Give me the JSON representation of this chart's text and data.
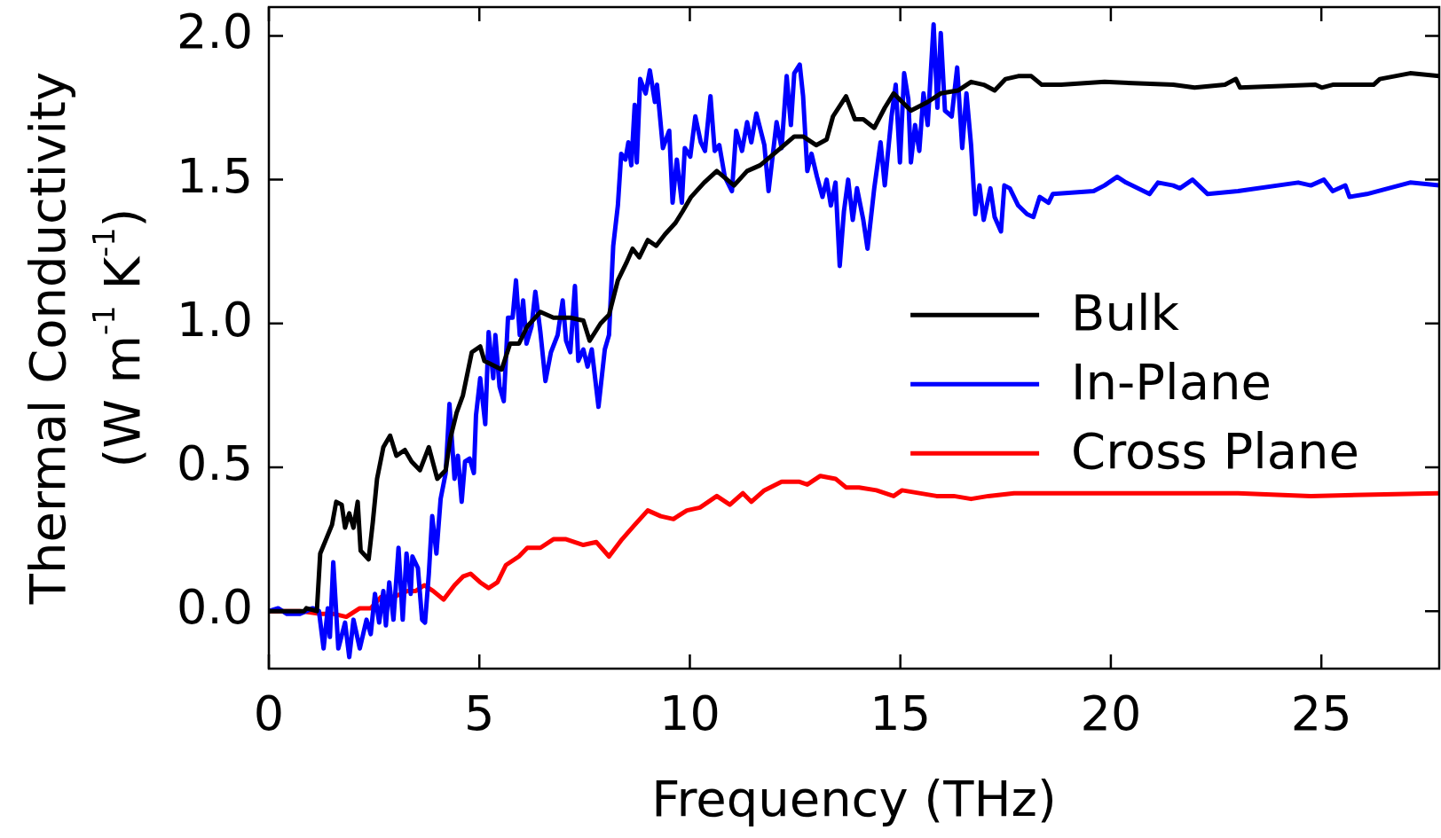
{
  "chart_data": {
    "type": "line",
    "xlabel": "Frequency (THz)",
    "ylabel": "Thermal Conductivity (W m$^{-1}$ K$^{-1}$)",
    "xlim": [
      0,
      27.8
    ],
    "ylim": [
      -0.2,
      2.1
    ],
    "xticks": [
      0,
      5,
      10,
      15,
      20,
      25
    ],
    "yticks": [
      {
        "value": 0,
        "label": "0.0"
      },
      {
        "value": 0.5,
        "label": "0.5"
      },
      {
        "value": 1,
        "label": "1.0"
      },
      {
        "value": 1.5,
        "label": "1.5"
      },
      {
        "value": 2,
        "label": "2.0"
      }
    ],
    "grid": false,
    "legend": "right",
    "marker": "none",
    "line_style": "solid",
    "series": [
      {
        "name": "Bulk",
        "color": "#000000",
        "x": [
          0,
          0.84,
          0.89,
          1.14,
          1.22,
          1.5,
          1.6,
          1.73,
          1.81,
          1.91,
          2.01,
          2.11,
          2.18,
          2.37,
          2.47,
          2.57,
          2.72,
          2.88,
          3.03,
          3.23,
          3.39,
          3.59,
          3.8,
          4.0,
          4.2,
          4.31,
          4.46,
          4.61,
          4.82,
          5.02,
          5.12,
          5.53,
          5.73,
          5.94,
          6.14,
          6.45,
          6.76,
          7.16,
          7.47,
          7.62,
          7.88,
          8.08,
          8.29,
          8.49,
          8.64,
          8.8,
          9.0,
          9.2,
          9.41,
          9.66,
          9.83,
          10.03,
          10.34,
          10.64,
          11.05,
          11.36,
          11.67,
          12.08,
          12.48,
          12.69,
          13.0,
          13.25,
          13.4,
          13.71,
          13.92,
          14.12,
          14.38,
          14.63,
          14.84,
          15.25,
          15.65,
          15.96,
          16.37,
          16.68,
          16.98,
          17.24,
          17.5,
          17.8,
          18.11,
          18.36,
          18.82,
          19.85,
          21.48,
          21.99,
          22.71,
          22.97,
          23.07,
          24.86,
          25.01,
          25.27,
          26.24,
          26.39,
          27.11,
          27.8
        ],
        "values": [
          0,
          0,
          0.01,
          0,
          0.2,
          0.3,
          0.38,
          0.37,
          0.29,
          0.34,
          0.29,
          0.38,
          0.21,
          0.18,
          0.31,
          0.46,
          0.57,
          0.61,
          0.54,
          0.56,
          0.52,
          0.49,
          0.57,
          0.46,
          0.49,
          0.6,
          0.69,
          0.75,
          0.9,
          0.92,
          0.87,
          0.84,
          0.93,
          0.93,
          0.99,
          1.04,
          1.02,
          1.02,
          1.01,
          0.94,
          1.0,
          1.03,
          1.15,
          1.21,
          1.26,
          1.23,
          1.29,
          1.27,
          1.31,
          1.35,
          1.39,
          1.44,
          1.49,
          1.53,
          1.48,
          1.53,
          1.55,
          1.6,
          1.65,
          1.65,
          1.62,
          1.64,
          1.72,
          1.79,
          1.71,
          1.71,
          1.68,
          1.75,
          1.8,
          1.74,
          1.77,
          1.8,
          1.81,
          1.84,
          1.83,
          1.81,
          1.85,
          1.86,
          1.86,
          1.83,
          1.83,
          1.84,
          1.83,
          1.82,
          1.83,
          1.85,
          1.82,
          1.83,
          1.82,
          1.83,
          1.83,
          1.85,
          1.87,
          1.86
        ]
      },
      {
        "name": "In-Plane",
        "color": "#0000ff",
        "x": [
          0,
          0.22,
          0.43,
          0.73,
          1.04,
          1.19,
          1.3,
          1.4,
          1.45,
          1.53,
          1.65,
          1.81,
          1.91,
          2.01,
          2.16,
          2.32,
          2.42,
          2.52,
          2.62,
          2.72,
          2.78,
          2.86,
          2.96,
          3.08,
          3.18,
          3.27,
          3.37,
          3.41,
          3.54,
          3.64,
          3.71,
          3.8,
          3.88,
          3.98,
          4.08,
          4.2,
          4.29,
          4.41,
          4.49,
          4.58,
          4.66,
          4.77,
          4.87,
          4.92,
          5.02,
          5.14,
          5.22,
          5.33,
          5.38,
          5.48,
          5.58,
          5.68,
          5.79,
          5.87,
          5.96,
          6.04,
          6.12,
          6.24,
          6.33,
          6.45,
          6.57,
          6.7,
          6.86,
          6.98,
          7.06,
          7.16,
          7.27,
          7.35,
          7.47,
          7.57,
          7.67,
          7.83,
          7.98,
          8.08,
          8.18,
          8.29,
          8.37,
          8.47,
          8.54,
          8.61,
          8.69,
          8.74,
          8.82,
          8.95,
          9.05,
          9.17,
          9.22,
          9.36,
          9.51,
          9.59,
          9.69,
          9.81,
          9.88,
          10.01,
          10.13,
          10.26,
          10.36,
          10.49,
          10.59,
          10.7,
          10.83,
          11.0,
          11.1,
          11.24,
          11.36,
          11.46,
          11.58,
          11.77,
          11.87,
          12.06,
          12.18,
          12.3,
          12.4,
          12.48,
          12.61,
          12.69,
          12.79,
          12.89,
          13.02,
          13.15,
          13.25,
          13.35,
          13.46,
          13.56,
          13.66,
          13.76,
          13.87,
          13.97,
          14.12,
          14.22,
          14.38,
          14.53,
          14.63,
          14.79,
          14.89,
          14.99,
          15.09,
          15.19,
          15.25,
          15.35,
          15.45,
          15.55,
          15.65,
          15.79,
          15.88,
          15.96,
          16.06,
          16.22,
          16.35,
          16.47,
          16.57,
          16.68,
          16.78,
          16.88,
          16.98,
          17.14,
          17.24,
          17.39,
          17.47,
          17.6,
          17.8,
          18.01,
          18.16,
          18.31,
          18.52,
          18.62,
          19.59,
          19.85,
          20.15,
          20.36,
          20.92,
          21.12,
          21.48,
          21.64,
          21.94,
          22.3,
          23.02,
          24.45,
          24.75,
          25.06,
          25.27,
          25.57,
          25.67,
          26.08,
          27.11,
          27.8
        ],
        "values": [
          0,
          0.01,
          -0.01,
          -0.01,
          0.01,
          0,
          -0.13,
          0.01,
          -0.09,
          0.17,
          -0.13,
          -0.04,
          -0.16,
          -0.03,
          -0.13,
          -0.03,
          -0.08,
          0.06,
          -0.04,
          0.07,
          -0.05,
          0.1,
          -0.03,
          0.22,
          -0.03,
          0.2,
          0.06,
          0.19,
          0.15,
          -0.03,
          -0.04,
          0.13,
          0.33,
          0.2,
          0.39,
          0.48,
          0.72,
          0.46,
          0.54,
          0.38,
          0.52,
          0.53,
          0.48,
          0.68,
          0.81,
          0.65,
          0.97,
          0.81,
          0.96,
          0.78,
          0.73,
          1.02,
          1.02,
          1.15,
          0.96,
          1.08,
          0.93,
          0.99,
          1.11,
          0.97,
          0.8,
          0.9,
          0.96,
          1.08,
          0.94,
          0.9,
          1.13,
          0.87,
          0.91,
          0.85,
          0.91,
          0.71,
          0.91,
          0.96,
          1.27,
          1.41,
          1.59,
          1.57,
          1.63,
          1.55,
          1.76,
          1.56,
          1.85,
          1.8,
          1.88,
          1.77,
          1.83,
          1.61,
          1.67,
          1.42,
          1.57,
          1.42,
          1.61,
          1.58,
          1.72,
          1.63,
          1.6,
          1.79,
          1.6,
          1.62,
          1.51,
          1.46,
          1.67,
          1.6,
          1.7,
          1.63,
          1.73,
          1.62,
          1.46,
          1.7,
          1.61,
          1.86,
          1.69,
          1.87,
          1.9,
          1.79,
          1.53,
          1.59,
          1.51,
          1.44,
          1.5,
          1.41,
          1.49,
          1.2,
          1.39,
          1.5,
          1.36,
          1.47,
          1.36,
          1.26,
          1.47,
          1.63,
          1.48,
          1.72,
          1.83,
          1.56,
          1.87,
          1.78,
          1.56,
          1.69,
          1.6,
          1.8,
          1.69,
          2.04,
          1.75,
          2.01,
          1.74,
          1.72,
          1.89,
          1.61,
          1.8,
          1.62,
          1.38,
          1.48,
          1.36,
          1.47,
          1.37,
          1.32,
          1.48,
          1.47,
          1.41,
          1.38,
          1.37,
          1.44,
          1.42,
          1.45,
          1.46,
          1.48,
          1.51,
          1.49,
          1.45,
          1.49,
          1.48,
          1.47,
          1.5,
          1.45,
          1.46,
          1.49,
          1.48,
          1.5,
          1.46,
          1.48,
          1.44,
          1.45,
          1.49,
          1.48
        ]
      },
      {
        "name": "Cross Plane",
        "color": "#ff0000",
        "x": [
          0,
          0.73,
          1.24,
          1.55,
          1.84,
          2.16,
          2.42,
          2.67,
          2.98,
          3.29,
          3.49,
          3.69,
          3.9,
          4.15,
          4.41,
          4.61,
          4.79,
          5.02,
          5.22,
          5.43,
          5.63,
          5.94,
          6.14,
          6.45,
          6.76,
          7.06,
          7.47,
          7.78,
          8.08,
          8.39,
          8.69,
          9.0,
          9.31,
          9.61,
          9.82,
          9.93,
          10.24,
          10.64,
          10.95,
          11.26,
          11.46,
          11.77,
          12.18,
          12.59,
          12.79,
          13.1,
          13.46,
          13.71,
          14.02,
          14.43,
          14.84,
          15.04,
          15.45,
          15.86,
          16.27,
          16.68,
          17.09,
          17.7,
          18.62,
          20.15,
          23.02,
          24.75,
          27.8
        ],
        "values": [
          0,
          0,
          -0.01,
          -0.01,
          -0.02,
          0.01,
          0.01,
          0.05,
          0.05,
          0.07,
          0.07,
          0.09,
          0.07,
          0.04,
          0.09,
          0.12,
          0.13,
          0.1,
          0.08,
          0.1,
          0.16,
          0.19,
          0.22,
          0.22,
          0.25,
          0.25,
          0.23,
          0.24,
          0.19,
          0.25,
          0.3,
          0.35,
          0.33,
          0.32,
          0.34,
          0.35,
          0.36,
          0.4,
          0.37,
          0.41,
          0.38,
          0.42,
          0.45,
          0.45,
          0.44,
          0.47,
          0.46,
          0.43,
          0.43,
          0.42,
          0.4,
          0.42,
          0.41,
          0.4,
          0.4,
          0.39,
          0.4,
          0.41,
          0.41,
          0.41,
          0.41,
          0.4,
          0.41
        ]
      }
    ]
  }
}
